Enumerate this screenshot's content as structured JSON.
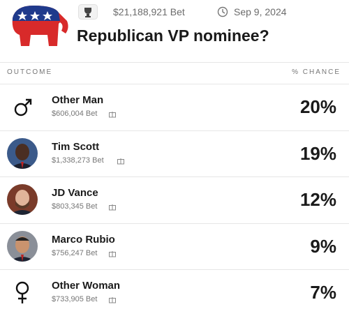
{
  "header": {
    "volume": "$21,188,921 Bet",
    "date": "Sep 9, 2024",
    "title": "Republican VP nominee?"
  },
  "table": {
    "columns": [
      "OUTCOME",
      "% CHANCE"
    ],
    "rows": [
      {
        "name": "Other Man",
        "bet": "$606,004 Bet",
        "chance": "20%"
      },
      {
        "name": "Tim Scott",
        "bet": "$1,338,273 Bet",
        "chance": "19%"
      },
      {
        "name": "JD Vance",
        "bet": "$803,345 Bet",
        "chance": "12%"
      },
      {
        "name": "Marco Rubio",
        "bet": "$756,247 Bet",
        "chance": "9%"
      },
      {
        "name": "Other Woman",
        "bet": "$733,905 Bet",
        "chance": "7%"
      }
    ]
  }
}
